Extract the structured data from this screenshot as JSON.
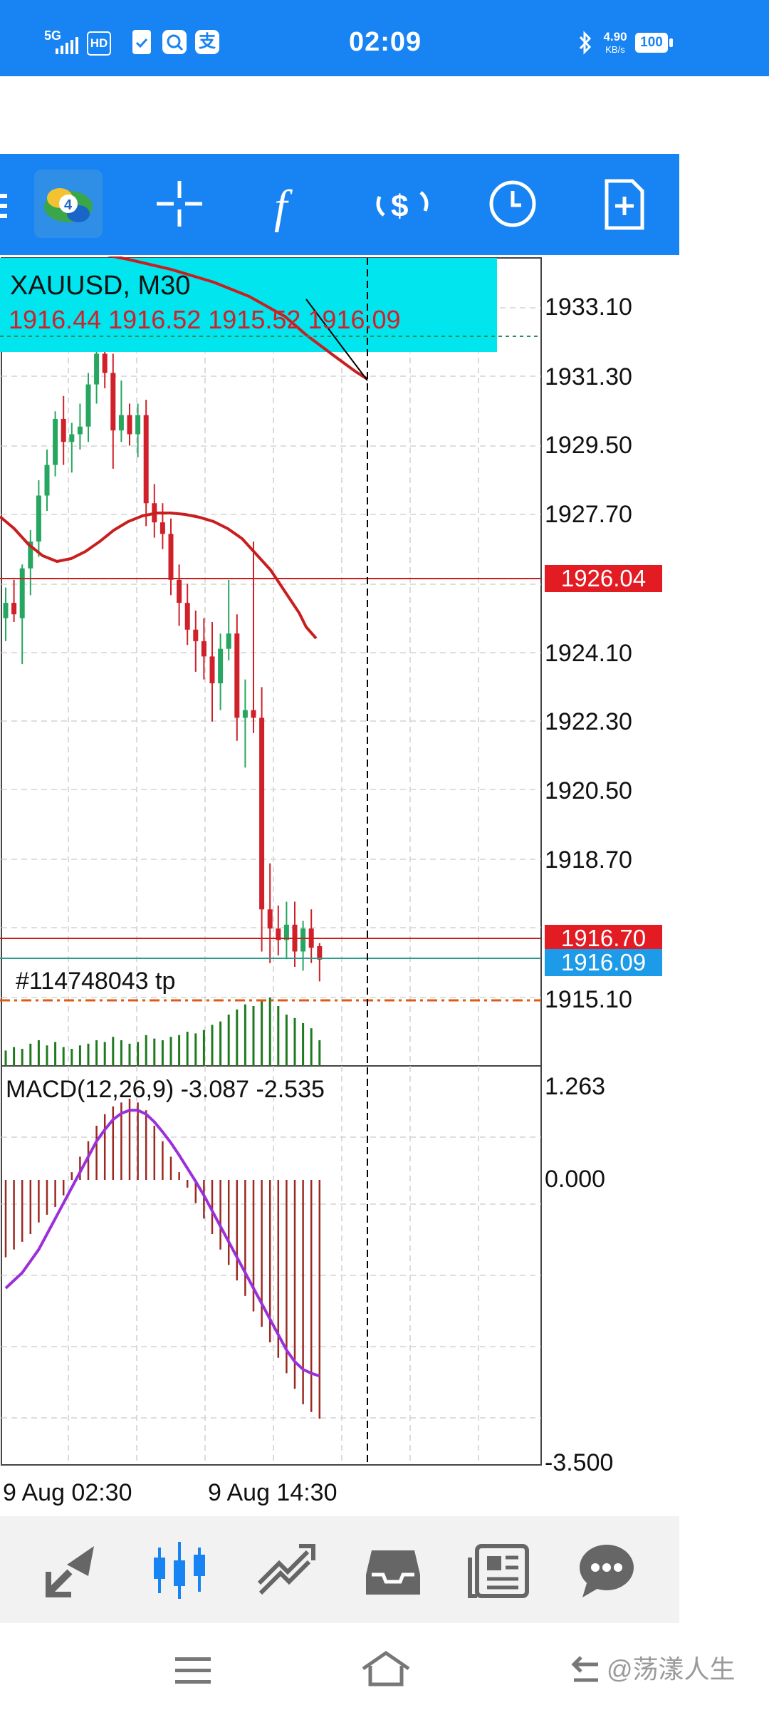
{
  "status_bar": {
    "network": "5G",
    "hd": "HD",
    "time": "02:09",
    "speed_value": "4.90",
    "speed_unit": "KB/s",
    "battery": "100"
  },
  "toolbar": {
    "icons": [
      "menu-icon",
      "metatrader-logo-icon",
      "crosshair-icon",
      "indicators-icon",
      "trade-icon",
      "timeframe-icon",
      "new-order-icon"
    ]
  },
  "chart": {
    "symbol": "XAUUSD, M30",
    "ohlc": "1916.44 1916.52 1915.52 1916.09",
    "order_label": "#114748043 tp",
    "macd_label": "MACD(12,26,9) -3.087 -2.535",
    "price_axis": [
      "1933.10",
      "1931.30",
      "1929.50",
      "1927.70",
      "1924.10",
      "1922.30",
      "1920.50",
      "1918.70",
      "1915.10"
    ],
    "price_tag_red": "1926.04",
    "price_tag_ask": "1916.70",
    "price_tag_bid": "1916.09",
    "macd_axis": [
      "1.263",
      "0.000",
      "-3.500"
    ],
    "time_axis": [
      "9 Aug 02:30",
      "9 Aug 14:30"
    ],
    "colors": {
      "bull": "#26a660",
      "bear": "#d0202a",
      "overlay": "#00e5ee",
      "ma": "#c81e1e",
      "macd_signal": "#9b30d9",
      "macd_hist": "#9b2a22",
      "tag_red": "#e31b23",
      "tag_blue": "#1e9be8"
    }
  },
  "bottom_nav": {
    "icons": [
      "quotes-icon",
      "chart-icon",
      "trade-icon",
      "history-icon",
      "news-icon",
      "messages-icon"
    ]
  },
  "watermark": "@荡漾人生"
}
